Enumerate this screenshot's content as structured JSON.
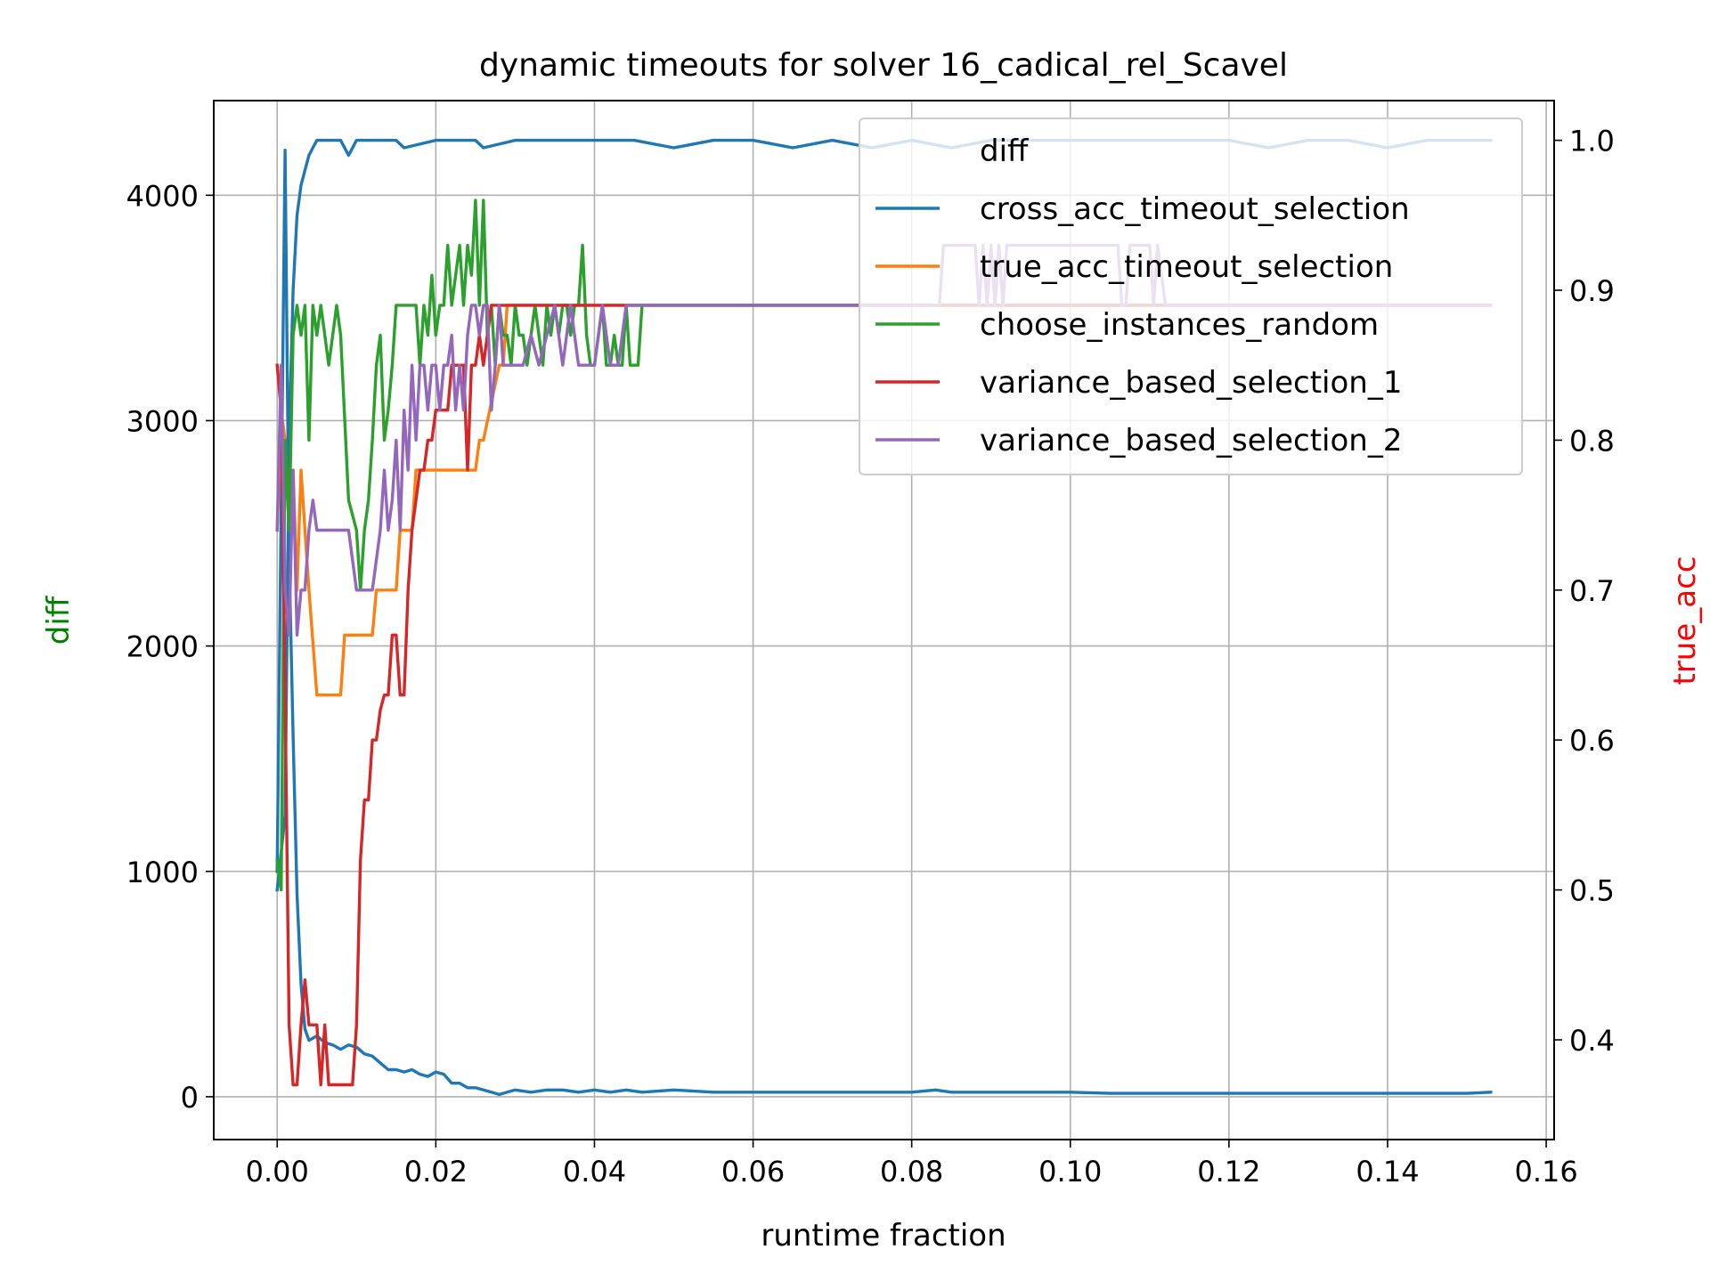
{
  "chart_data": {
    "type": "line",
    "title": "dynamic timeouts for solver 16_cadical_rel_Scavel",
    "xlabel": "runtime fraction",
    "ylabel_left": "diff",
    "ylabel_right": "true_acc",
    "xlim": [
      -0.008,
      0.161
    ],
    "ylim_left": [
      -190,
      4420
    ],
    "ylim_right": [
      0.3335,
      1.0265
    ],
    "x_ticks": [
      0.0,
      0.02,
      0.04,
      0.06,
      0.08,
      0.1,
      0.12,
      0.14,
      0.16
    ],
    "x_tick_labels": [
      "0.00",
      "0.02",
      "0.04",
      "0.06",
      "0.08",
      "0.10",
      "0.12",
      "0.14",
      "0.16"
    ],
    "y_left_ticks": [
      0,
      1000,
      2000,
      3000,
      4000
    ],
    "y_left_tick_labels": [
      "0",
      "1000",
      "2000",
      "3000",
      "4000"
    ],
    "y_right_ticks": [
      0.4,
      0.5,
      0.6,
      0.7,
      0.8,
      0.9,
      1.0
    ],
    "y_right_tick_labels": [
      "0.4",
      "0.5",
      "0.6",
      "0.7",
      "0.8",
      "0.9",
      "1.0"
    ],
    "grid": true,
    "legend_placement": "top-right",
    "legend": [
      "diff",
      "cross_acc_timeout_selection",
      "true_acc_timeout_selection",
      "choose_instances_random",
      "variance_based_selection_1",
      "variance_based_selection_2"
    ],
    "colors": {
      "diff_left_label": "#008000",
      "true_acc_right_label": "#ff0000",
      "cross_acc_timeout_selection": "#1f77b4",
      "true_acc_timeout_selection": "#ff7f0e",
      "choose_instances_random": "#2ca02c",
      "variance_based_selection_1": "#d62728",
      "variance_based_selection_2": "#9467bd"
    },
    "series": [
      {
        "name": "diff",
        "axis": "left",
        "color": "#1f77b4",
        "x": [
          0.0,
          0.001,
          0.0015,
          0.002,
          0.0025,
          0.003,
          0.0035,
          0.004,
          0.005,
          0.006,
          0.007,
          0.008,
          0.009,
          0.01,
          0.011,
          0.012,
          0.013,
          0.014,
          0.015,
          0.016,
          0.017,
          0.018,
          0.019,
          0.02,
          0.021,
          0.022,
          0.023,
          0.024,
          0.025,
          0.026,
          0.027,
          0.028,
          0.029,
          0.03,
          0.032,
          0.034,
          0.036,
          0.038,
          0.04,
          0.042,
          0.044,
          0.046,
          0.05,
          0.055,
          0.06,
          0.065,
          0.07,
          0.075,
          0.08,
          0.083,
          0.085,
          0.09,
          0.095,
          0.1,
          0.105,
          0.11,
          0.115,
          0.12,
          0.125,
          0.13,
          0.135,
          0.14,
          0.145,
          0.15,
          0.153
        ],
        "values": [
          1000,
          4200,
          2400,
          1600,
          900,
          500,
          300,
          250,
          270,
          240,
          230,
          210,
          230,
          220,
          190,
          180,
          150,
          120,
          120,
          110,
          120,
          100,
          90,
          110,
          100,
          60,
          60,
          40,
          40,
          30,
          20,
          10,
          20,
          30,
          20,
          30,
          30,
          20,
          30,
          20,
          30,
          20,
          30,
          20,
          20,
          20,
          20,
          20,
          20,
          30,
          20,
          20,
          20,
          20,
          15,
          15,
          15,
          15,
          15,
          15,
          15,
          15,
          15,
          15,
          20
        ]
      },
      {
        "name": "cross_acc_timeout_selection",
        "axis": "right",
        "color": "#1f77b4",
        "x": [
          0.0,
          0.001,
          0.0015,
          0.002,
          0.0025,
          0.003,
          0.0035,
          0.004,
          0.0045,
          0.005,
          0.006,
          0.008,
          0.009,
          0.01,
          0.011,
          0.012,
          0.015,
          0.016,
          0.02,
          0.025,
          0.026,
          0.03,
          0.035,
          0.04,
          0.045,
          0.05,
          0.055,
          0.06,
          0.065,
          0.07,
          0.075,
          0.08,
          0.085,
          0.09,
          0.1,
          0.105,
          0.11,
          0.12,
          0.125,
          0.13,
          0.135,
          0.14,
          0.145,
          0.15,
          0.153
        ],
        "values": [
          0.5,
          0.55,
          0.8,
          0.9,
          0.95,
          0.97,
          0.98,
          0.99,
          0.995,
          1.0,
          1.0,
          1.0,
          0.99,
          1.0,
          1.0,
          1.0,
          1.0,
          0.995,
          1.0,
          1.0,
          0.995,
          1.0,
          1.0,
          1.0,
          1.0,
          0.995,
          1.0,
          1.0,
          0.995,
          1.0,
          0.995,
          1.0,
          0.995,
          1.0,
          1.0,
          1.0,
          1.0,
          1.0,
          0.995,
          1.0,
          1.0,
          0.995,
          1.0,
          1.0,
          1.0
        ]
      },
      {
        "name": "true_acc_timeout_selection",
        "axis": "right",
        "color": "#ff7f0e",
        "x": [
          0.0,
          0.0005,
          0.001,
          0.0015,
          0.002,
          0.0025,
          0.003,
          0.0035,
          0.004,
          0.005,
          0.008,
          0.0085,
          0.009,
          0.012,
          0.0125,
          0.013,
          0.015,
          0.0155,
          0.016,
          0.017,
          0.0175,
          0.018,
          0.025,
          0.0255,
          0.026,
          0.028,
          0.0285,
          0.029,
          0.04,
          0.045,
          0.153
        ],
        "values": [
          0.74,
          0.82,
          0.8,
          0.74,
          0.78,
          0.7,
          0.78,
          0.74,
          0.7,
          0.63,
          0.63,
          0.67,
          0.67,
          0.67,
          0.7,
          0.7,
          0.7,
          0.74,
          0.74,
          0.74,
          0.78,
          0.78,
          0.78,
          0.8,
          0.8,
          0.85,
          0.85,
          0.89,
          0.89,
          0.89,
          0.89
        ]
      },
      {
        "name": "choose_instances_random",
        "axis": "right",
        "color": "#2ca02c",
        "x": [
          0.0,
          0.0005,
          0.001,
          0.0015,
          0.002,
          0.0025,
          0.003,
          0.0035,
          0.004,
          0.0045,
          0.005,
          0.0055,
          0.006,
          0.0065,
          0.007,
          0.0075,
          0.008,
          0.009,
          0.01,
          0.0105,
          0.011,
          0.0115,
          0.012,
          0.0125,
          0.013,
          0.0135,
          0.014,
          0.0145,
          0.015,
          0.0155,
          0.016,
          0.0165,
          0.017,
          0.0175,
          0.018,
          0.0185,
          0.019,
          0.0195,
          0.02,
          0.0205,
          0.021,
          0.0215,
          0.022,
          0.0225,
          0.023,
          0.0235,
          0.024,
          0.0245,
          0.025,
          0.0255,
          0.026,
          0.0265,
          0.027,
          0.0275,
          0.028,
          0.0285,
          0.029,
          0.0295,
          0.03,
          0.0305,
          0.031,
          0.0315,
          0.032,
          0.0325,
          0.033,
          0.0335,
          0.034,
          0.0345,
          0.035,
          0.0355,
          0.036,
          0.0365,
          0.037,
          0.0375,
          0.038,
          0.0385,
          0.039,
          0.0395,
          0.04,
          0.0405,
          0.041,
          0.0415,
          0.042,
          0.0425,
          0.043,
          0.0435,
          0.044,
          0.0445,
          0.045,
          0.0455,
          0.046,
          0.153
        ],
        "values": [
          0.52,
          0.5,
          0.8,
          0.74,
          0.87,
          0.89,
          0.87,
          0.89,
          0.8,
          0.89,
          0.87,
          0.89,
          0.87,
          0.85,
          0.87,
          0.89,
          0.87,
          0.76,
          0.74,
          0.7,
          0.74,
          0.76,
          0.8,
          0.85,
          0.87,
          0.8,
          0.82,
          0.85,
          0.89,
          0.89,
          0.89,
          0.89,
          0.89,
          0.89,
          0.85,
          0.89,
          0.87,
          0.91,
          0.87,
          0.89,
          0.89,
          0.93,
          0.89,
          0.91,
          0.93,
          0.89,
          0.93,
          0.91,
          0.96,
          0.89,
          0.96,
          0.87,
          0.89,
          0.85,
          0.89,
          0.87,
          0.87,
          0.85,
          0.89,
          0.87,
          0.87,
          0.85,
          0.87,
          0.89,
          0.87,
          0.85,
          0.89,
          0.87,
          0.89,
          0.87,
          0.89,
          0.89,
          0.87,
          0.89,
          0.89,
          0.93,
          0.87,
          0.85,
          0.85,
          0.87,
          0.89,
          0.85,
          0.85,
          0.87,
          0.85,
          0.85,
          0.89,
          0.85,
          0.85,
          0.85,
          0.89,
          0.89
        ]
      },
      {
        "name": "variance_based_selection_1",
        "axis": "right",
        "color": "#d62728",
        "x": [
          0.0,
          0.0005,
          0.001,
          0.0015,
          0.002,
          0.0025,
          0.003,
          0.0035,
          0.004,
          0.0045,
          0.005,
          0.0055,
          0.006,
          0.0065,
          0.007,
          0.0075,
          0.008,
          0.0085,
          0.009,
          0.0095,
          0.01,
          0.0105,
          0.011,
          0.0115,
          0.012,
          0.0125,
          0.013,
          0.0135,
          0.014,
          0.0145,
          0.015,
          0.0155,
          0.016,
          0.0165,
          0.017,
          0.0175,
          0.018,
          0.0185,
          0.019,
          0.0195,
          0.02,
          0.0205,
          0.021,
          0.0215,
          0.022,
          0.0225,
          0.023,
          0.0235,
          0.024,
          0.0245,
          0.025,
          0.0255,
          0.026,
          0.0265,
          0.027,
          0.0275,
          0.028,
          0.0285,
          0.029,
          0.153
        ],
        "values": [
          0.85,
          0.82,
          0.63,
          0.41,
          0.37,
          0.37,
          0.41,
          0.44,
          0.41,
          0.41,
          0.41,
          0.37,
          0.41,
          0.37,
          0.37,
          0.37,
          0.37,
          0.37,
          0.37,
          0.37,
          0.41,
          0.52,
          0.56,
          0.56,
          0.6,
          0.6,
          0.62,
          0.63,
          0.63,
          0.67,
          0.67,
          0.63,
          0.63,
          0.7,
          0.74,
          0.76,
          0.78,
          0.78,
          0.8,
          0.8,
          0.82,
          0.82,
          0.82,
          0.82,
          0.85,
          0.85,
          0.85,
          0.85,
          0.78,
          0.85,
          0.85,
          0.87,
          0.85,
          0.87,
          0.89,
          0.89,
          0.89,
          0.89,
          0.89,
          0.89
        ]
      },
      {
        "name": "variance_based_selection_2",
        "axis": "right",
        "color": "#9467bd",
        "x": [
          0.0,
          0.0005,
          0.001,
          0.0015,
          0.002,
          0.0025,
          0.003,
          0.0035,
          0.004,
          0.0045,
          0.005,
          0.006,
          0.007,
          0.008,
          0.009,
          0.01,
          0.011,
          0.012,
          0.013,
          0.0135,
          0.014,
          0.0145,
          0.015,
          0.0155,
          0.016,
          0.0165,
          0.017,
          0.0175,
          0.018,
          0.0185,
          0.019,
          0.0195,
          0.02,
          0.0205,
          0.021,
          0.0215,
          0.022,
          0.0225,
          0.023,
          0.0235,
          0.024,
          0.0245,
          0.025,
          0.0255,
          0.026,
          0.0265,
          0.027,
          0.0275,
          0.028,
          0.0285,
          0.029,
          0.0295,
          0.03,
          0.031,
          0.032,
          0.033,
          0.034,
          0.035,
          0.036,
          0.037,
          0.038,
          0.039,
          0.04,
          0.041,
          0.042,
          0.043,
          0.044,
          0.045,
          0.05,
          0.08,
          0.0835,
          0.084,
          0.088,
          0.0885,
          0.089,
          0.0895,
          0.09,
          0.0905,
          0.091,
          0.0915,
          0.092,
          0.106,
          0.1065,
          0.107,
          0.1075,
          0.108,
          0.11,
          0.1105,
          0.111,
          0.112,
          0.153
        ],
        "values": [
          0.74,
          0.85,
          0.7,
          0.67,
          0.78,
          0.67,
          0.7,
          0.7,
          0.74,
          0.76,
          0.74,
          0.74,
          0.74,
          0.74,
          0.74,
          0.7,
          0.7,
          0.7,
          0.74,
          0.78,
          0.74,
          0.76,
          0.8,
          0.74,
          0.82,
          0.78,
          0.85,
          0.8,
          0.85,
          0.85,
          0.82,
          0.85,
          0.85,
          0.82,
          0.85,
          0.85,
          0.87,
          0.82,
          0.85,
          0.82,
          0.87,
          0.89,
          0.89,
          0.87,
          0.89,
          0.89,
          0.82,
          0.85,
          0.89,
          0.85,
          0.85,
          0.85,
          0.85,
          0.85,
          0.87,
          0.85,
          0.87,
          0.89,
          0.85,
          0.89,
          0.85,
          0.85,
          0.85,
          0.89,
          0.85,
          0.85,
          0.89,
          0.89,
          0.89,
          0.89,
          0.89,
          0.93,
          0.93,
          0.89,
          0.93,
          0.89,
          0.93,
          0.89,
          0.93,
          0.89,
          0.93,
          0.93,
          0.89,
          0.89,
          0.93,
          0.93,
          0.93,
          0.89,
          0.93,
          0.89,
          0.89
        ]
      }
    ]
  }
}
